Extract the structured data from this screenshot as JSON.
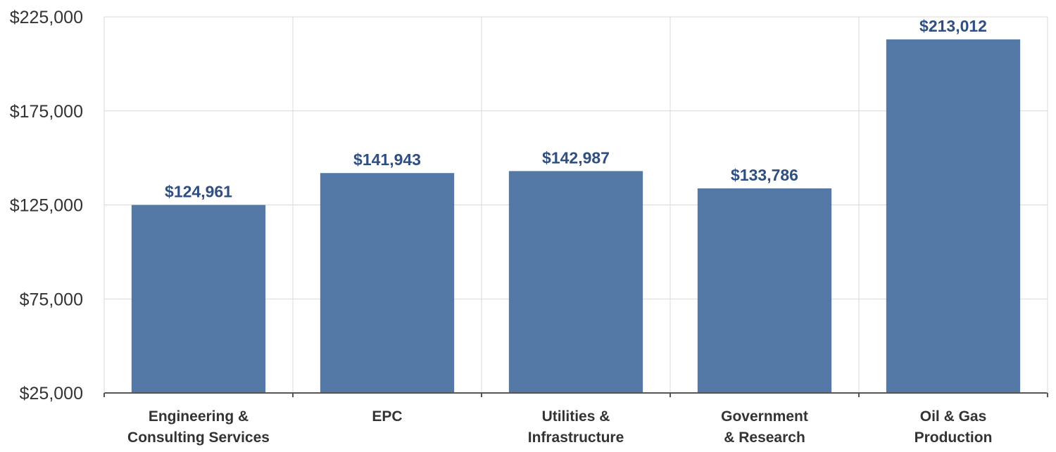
{
  "chart_data": {
    "type": "bar",
    "categories": [
      [
        "Engineering &",
        "Consulting Services"
      ],
      [
        "EPC"
      ],
      [
        "Utilities &",
        "Infrastructure"
      ],
      [
        "Government",
        "& Research"
      ],
      [
        "Oil & Gas",
        "Production"
      ]
    ],
    "values": [
      124961,
      141943,
      142987,
      133786,
      213012
    ],
    "data_labels": [
      "$124,961",
      "$141,943",
      "$142,987",
      "$133,786",
      "$213,012"
    ],
    "yticks": [
      25000,
      75000,
      125000,
      175000,
      225000
    ],
    "ytick_labels": [
      "$25,000",
      "$75,000",
      "$125,000",
      "$175,000",
      "$225,000"
    ],
    "ylim": [
      25000,
      225000
    ],
    "title": "",
    "xlabel": "",
    "ylabel": "",
    "grid": true,
    "legend": "none",
    "colors": {
      "bar": "#5479a6",
      "data_label": "#2f4f82",
      "grid": "#d9d9d9",
      "axis": "#555555",
      "text": "#333333"
    }
  }
}
